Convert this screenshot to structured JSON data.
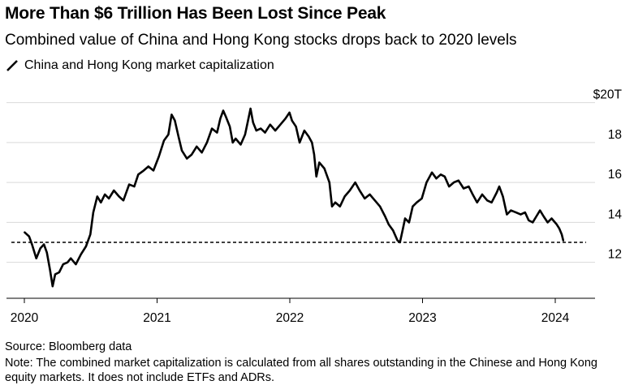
{
  "title": "More Than $6 Trillion Has Been Lost Since Peak",
  "subtitle": "Combined value of China and Hong Kong stocks drops back to 2020 levels",
  "legend": {
    "label": "China and Hong Kong market capitalization"
  },
  "footer": {
    "source": "Source: Bloomberg data",
    "note": "Note: The combined market capitalization is calculated from all shares outstanding in the Chinese and Hong Kong equity markets. It does not include ETFs and ADRs."
  },
  "colors": {
    "line": "#000000",
    "grid": "#d9d9d9",
    "axis": "#000000",
    "reference": "#000000"
  },
  "chart_data": {
    "type": "line",
    "title": "More Than $6 Trillion Has Been Lost Since Peak",
    "subtitle": "Combined value of China and Hong Kong stocks drops back to 2020 levels",
    "xlabel": "",
    "ylabel": "",
    "x_ticks": [
      "2020",
      "2021",
      "2022",
      "2023",
      "2024"
    ],
    "y_ticks": [
      {
        "value": 12,
        "label": "12"
      },
      {
        "value": 14,
        "label": "14"
      },
      {
        "value": 16,
        "label": "16"
      },
      {
        "value": 18,
        "label": "18"
      },
      {
        "value": 20,
        "label": "$20T"
      }
    ],
    "xlim": [
      "2020-01-01",
      "2024-04-01"
    ],
    "ylim": [
      10.2,
      21.0
    ],
    "grid": "horizontal",
    "legend_position": "top-left",
    "reference_line": {
      "value": 13.0,
      "style": "dashed"
    },
    "series": [
      {
        "name": "China and Hong Kong market capitalization",
        "points": [
          [
            "2020-01-02",
            13.5
          ],
          [
            "2020-01-14",
            13.3
          ],
          [
            "2020-01-22",
            12.9
          ],
          [
            "2020-02-03",
            12.2
          ],
          [
            "2020-02-14",
            12.7
          ],
          [
            "2020-02-24",
            12.9
          ],
          [
            "2020-03-03",
            12.5
          ],
          [
            "2020-03-12",
            11.6
          ],
          [
            "2020-03-19",
            10.8
          ],
          [
            "2020-03-26",
            11.4
          ],
          [
            "2020-04-06",
            11.5
          ],
          [
            "2020-04-17",
            11.9
          ],
          [
            "2020-04-29",
            12.0
          ],
          [
            "2020-05-08",
            12.2
          ],
          [
            "2020-05-22",
            11.9
          ],
          [
            "2020-06-05",
            12.4
          ],
          [
            "2020-06-19",
            12.8
          ],
          [
            "2020-07-01",
            13.4
          ],
          [
            "2020-07-09",
            14.5
          ],
          [
            "2020-07-20",
            15.3
          ],
          [
            "2020-07-30",
            15.0
          ],
          [
            "2020-08-10",
            15.4
          ],
          [
            "2020-08-21",
            15.2
          ],
          [
            "2020-09-04",
            15.6
          ],
          [
            "2020-09-18",
            15.3
          ],
          [
            "2020-09-30",
            15.1
          ],
          [
            "2020-10-16",
            15.9
          ],
          [
            "2020-10-30",
            15.8
          ],
          [
            "2020-11-10",
            16.4
          ],
          [
            "2020-11-25",
            16.6
          ],
          [
            "2020-12-08",
            16.8
          ],
          [
            "2020-12-22",
            16.6
          ],
          [
            "2021-01-06",
            17.3
          ],
          [
            "2021-01-20",
            18.1
          ],
          [
            "2021-02-01",
            18.4
          ],
          [
            "2021-02-10",
            19.4
          ],
          [
            "2021-02-19",
            19.1
          ],
          [
            "2021-03-01",
            18.3
          ],
          [
            "2021-03-10",
            17.6
          ],
          [
            "2021-03-24",
            17.2
          ],
          [
            "2021-04-06",
            17.4
          ],
          [
            "2021-04-20",
            17.8
          ],
          [
            "2021-05-04",
            17.5
          ],
          [
            "2021-05-18",
            18.0
          ],
          [
            "2021-06-01",
            18.7
          ],
          [
            "2021-06-15",
            18.5
          ],
          [
            "2021-06-24",
            19.2
          ],
          [
            "2021-07-02",
            19.6
          ],
          [
            "2021-07-09",
            19.3
          ],
          [
            "2021-07-20",
            18.8
          ],
          [
            "2021-07-28",
            18.0
          ],
          [
            "2021-08-05",
            18.2
          ],
          [
            "2021-08-19",
            17.9
          ],
          [
            "2021-08-31",
            18.4
          ],
          [
            "2021-09-07",
            19.0
          ],
          [
            "2021-09-15",
            19.7
          ],
          [
            "2021-09-22",
            19.0
          ],
          [
            "2021-10-01",
            18.6
          ],
          [
            "2021-10-13",
            18.7
          ],
          [
            "2021-10-25",
            18.5
          ],
          [
            "2021-11-08",
            18.9
          ],
          [
            "2021-11-22",
            18.6
          ],
          [
            "2021-12-06",
            18.9
          ],
          [
            "2021-12-20",
            19.2
          ],
          [
            "2021-12-31",
            19.5
          ],
          [
            "2022-01-07",
            19.1
          ],
          [
            "2022-01-18",
            18.8
          ],
          [
            "2022-01-28",
            18.0
          ],
          [
            "2022-02-10",
            18.6
          ],
          [
            "2022-02-22",
            18.3
          ],
          [
            "2022-03-03",
            18.0
          ],
          [
            "2022-03-09",
            17.4
          ],
          [
            "2022-03-15",
            16.3
          ],
          [
            "2022-03-23",
            17.0
          ],
          [
            "2022-04-06",
            16.7
          ],
          [
            "2022-04-20",
            16.0
          ],
          [
            "2022-04-27",
            14.8
          ],
          [
            "2022-05-06",
            15.0
          ],
          [
            "2022-05-19",
            14.8
          ],
          [
            "2022-06-01",
            15.3
          ],
          [
            "2022-06-15",
            15.6
          ],
          [
            "2022-06-30",
            16.0
          ],
          [
            "2022-07-12",
            15.6
          ],
          [
            "2022-07-26",
            15.2
          ],
          [
            "2022-08-09",
            15.4
          ],
          [
            "2022-08-23",
            15.1
          ],
          [
            "2022-09-06",
            14.8
          ],
          [
            "2022-09-20",
            14.3
          ],
          [
            "2022-09-30",
            13.9
          ],
          [
            "2022-10-12",
            13.6
          ],
          [
            "2022-10-24",
            13.1
          ],
          [
            "2022-10-31",
            13.0
          ],
          [
            "2022-11-07",
            13.6
          ],
          [
            "2022-11-14",
            14.2
          ],
          [
            "2022-11-25",
            14.0
          ],
          [
            "2022-12-05",
            14.8
          ],
          [
            "2022-12-16",
            15.0
          ],
          [
            "2022-12-30",
            15.2
          ],
          [
            "2023-01-12",
            16.0
          ],
          [
            "2023-01-27",
            16.5
          ],
          [
            "2023-02-08",
            16.2
          ],
          [
            "2023-02-20",
            16.4
          ],
          [
            "2023-03-03",
            16.3
          ],
          [
            "2023-03-15",
            15.8
          ],
          [
            "2023-03-28",
            16.0
          ],
          [
            "2023-04-10",
            16.1
          ],
          [
            "2023-04-24",
            15.7
          ],
          [
            "2023-05-08",
            15.8
          ],
          [
            "2023-05-19",
            15.4
          ],
          [
            "2023-05-31",
            15.0
          ],
          [
            "2023-06-14",
            15.4
          ],
          [
            "2023-06-28",
            15.1
          ],
          [
            "2023-07-10",
            15.0
          ],
          [
            "2023-07-24",
            15.5
          ],
          [
            "2023-07-31",
            15.8
          ],
          [
            "2023-08-10",
            15.3
          ],
          [
            "2023-08-21",
            14.4
          ],
          [
            "2023-09-01",
            14.6
          ],
          [
            "2023-09-15",
            14.5
          ],
          [
            "2023-09-28",
            14.4
          ],
          [
            "2023-10-10",
            14.5
          ],
          [
            "2023-10-20",
            14.1
          ],
          [
            "2023-10-31",
            14.0
          ],
          [
            "2023-11-10",
            14.3
          ],
          [
            "2023-11-20",
            14.6
          ],
          [
            "2023-11-30",
            14.3
          ],
          [
            "2023-12-11",
            14.0
          ],
          [
            "2023-12-22",
            14.2
          ],
          [
            "2024-01-05",
            13.9
          ],
          [
            "2024-01-12",
            13.7
          ],
          [
            "2024-01-19",
            13.4
          ],
          [
            "2024-01-23",
            13.1
          ]
        ]
      }
    ]
  }
}
